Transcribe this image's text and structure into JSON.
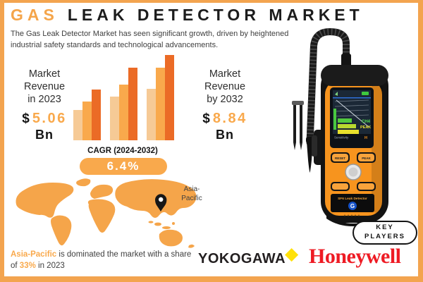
{
  "colors": {
    "frame": "#F3A44F",
    "accent": "#F5A54A",
    "number_orange": "#F9A94C",
    "cagr_pill": "#F9A94C",
    "bar_light": "#F6CA96",
    "bar_mid": "#F9A94C",
    "bar_dark": "#EB6B26",
    "map_orange": "#F5A54A",
    "device_orange": "#F7941E",
    "honeywell_red": "#EE1B24",
    "yokogawa_black": "#231F20",
    "yokogawa_diamond_yellow": "#FFE10A",
    "text_dark": "#1E1E1E",
    "text_gray": "#3F3F3F"
  },
  "header": {
    "title_highlight": "GAS",
    "title_rest": "LEAK DETECTOR MARKET",
    "subtitle": "The Gas Leak Detector Market has seen significant growth, driven by heightened industrial safety standards and technological advancements."
  },
  "stats": {
    "revenue_2023": {
      "label": "Market\nRevenue\nin 2023",
      "currency": "$",
      "value": "5.06",
      "unit": "Bn"
    },
    "revenue_2032": {
      "label": "Market\nRevenue\nby 2032",
      "currency": "$",
      "value": "8.84",
      "unit": "Bn"
    }
  },
  "cagr": {
    "label": "CAGR (2024-2032)",
    "value": "6.4%"
  },
  "chart_data": {
    "type": "bar",
    "title": "Decorative market-growth bars (no axes or tick labels shown in image)",
    "categories": [
      "left-group",
      "middle-group",
      "right-group"
    ],
    "series": [
      {
        "name": "light-orange",
        "color": "#F6CA96",
        "values": [
          43,
          62,
          73
        ]
      },
      {
        "name": "mid-orange",
        "color": "#F9A94C",
        "values": [
          55,
          79,
          103
        ]
      },
      {
        "name": "dark-orange",
        "color": "#EB6B26",
        "values": [
          72,
          103,
          121
        ]
      }
    ],
    "ylim": [
      0,
      122
    ],
    "grid": false,
    "legend": false
  },
  "map": {
    "region_label": "Asia-\nPacific"
  },
  "note": {
    "region": "Asia-Pacific",
    "text_mid": " is dominated the market with a share of ",
    "share": "33%",
    "text_end": " in 2023"
  },
  "device": {
    "screen_gas": "CH4",
    "screen_peak": "PEAK",
    "screen_footer": "Sensitivity",
    "screen_footer_value": "H",
    "button_left": "RESET",
    "button_right": "PEAK",
    "label": "SF6 Leak Detector",
    "logo_letter": "G"
  },
  "key_players": {
    "badge": "KEY\nPLAYERS",
    "companies": [
      "YOKOGAWA",
      "Honeywell"
    ],
    "diamond_glyph": "◆"
  }
}
